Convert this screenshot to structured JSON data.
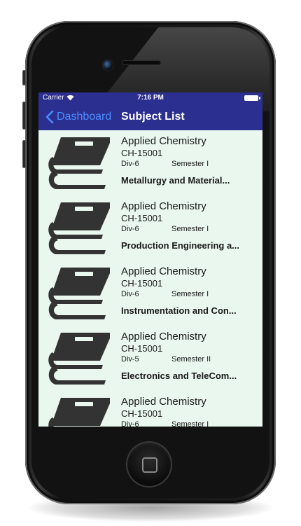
{
  "status_bar": {
    "carrier": "Carrier",
    "time": "7:16 PM"
  },
  "nav": {
    "back_label": "Dashboard",
    "title": "Subject List"
  },
  "colors": {
    "nav_background": "#2b2f8f",
    "back_tint": "#4e8cff",
    "list_background": "#e9f7ee",
    "book_icon": "#333333"
  },
  "subjects": [
    {
      "name": "Applied Chemistry",
      "code": "CH-15001",
      "division": "Div-6",
      "semester": "Semester I",
      "department": "Metallurgy and Material..."
    },
    {
      "name": "Applied Chemistry",
      "code": "CH-15001",
      "division": "Div-6",
      "semester": "Semester I",
      "department": "Production Engineering a..."
    },
    {
      "name": "Applied Chemistry",
      "code": "CH-15001",
      "division": "Div-6",
      "semester": "Semester I",
      "department": "Instrumentation and Con..."
    },
    {
      "name": "Applied Chemistry",
      "code": "CH-15001",
      "division": "Div-5",
      "semester": "Semester II",
      "department": "Electronics and TeleCom..."
    },
    {
      "name": "Applied Chemistry",
      "code": "CH-15001",
      "division": "Div-6",
      "semester": "Semester I",
      "department": ""
    }
  ]
}
